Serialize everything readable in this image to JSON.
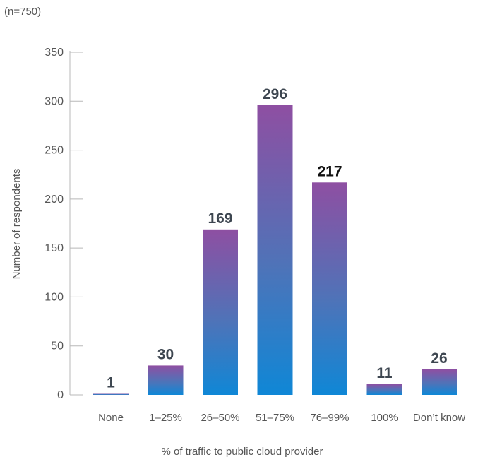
{
  "note": "(n=750)",
  "chart_data": {
    "type": "bar",
    "title": "",
    "xlabel": "% of traffic to public cloud provider",
    "ylabel": "Number of respondents",
    "categories": [
      "None",
      "1–25%",
      "26–50%",
      "51–75%",
      "76–99%",
      "100%",
      "Don’t know"
    ],
    "values": [
      1,
      30,
      169,
      296,
      217,
      11,
      26
    ],
    "data_labels": [
      "1",
      "30",
      "169",
      "296",
      "217",
      "11",
      "26"
    ],
    "yticks": [
      0,
      50,
      100,
      150,
      200,
      250,
      300,
      350
    ],
    "ylim": [
      0,
      350
    ],
    "grid": false,
    "legend": "none",
    "colors": {
      "bar_top": "#8e4fa2",
      "bar_mid": "#4f73b8",
      "bar_bottom": "#0f87d6",
      "label_dark": "#3d4650",
      "label_black": "#111111",
      "axis": "#b8b8b8",
      "text": "#555555"
    }
  }
}
